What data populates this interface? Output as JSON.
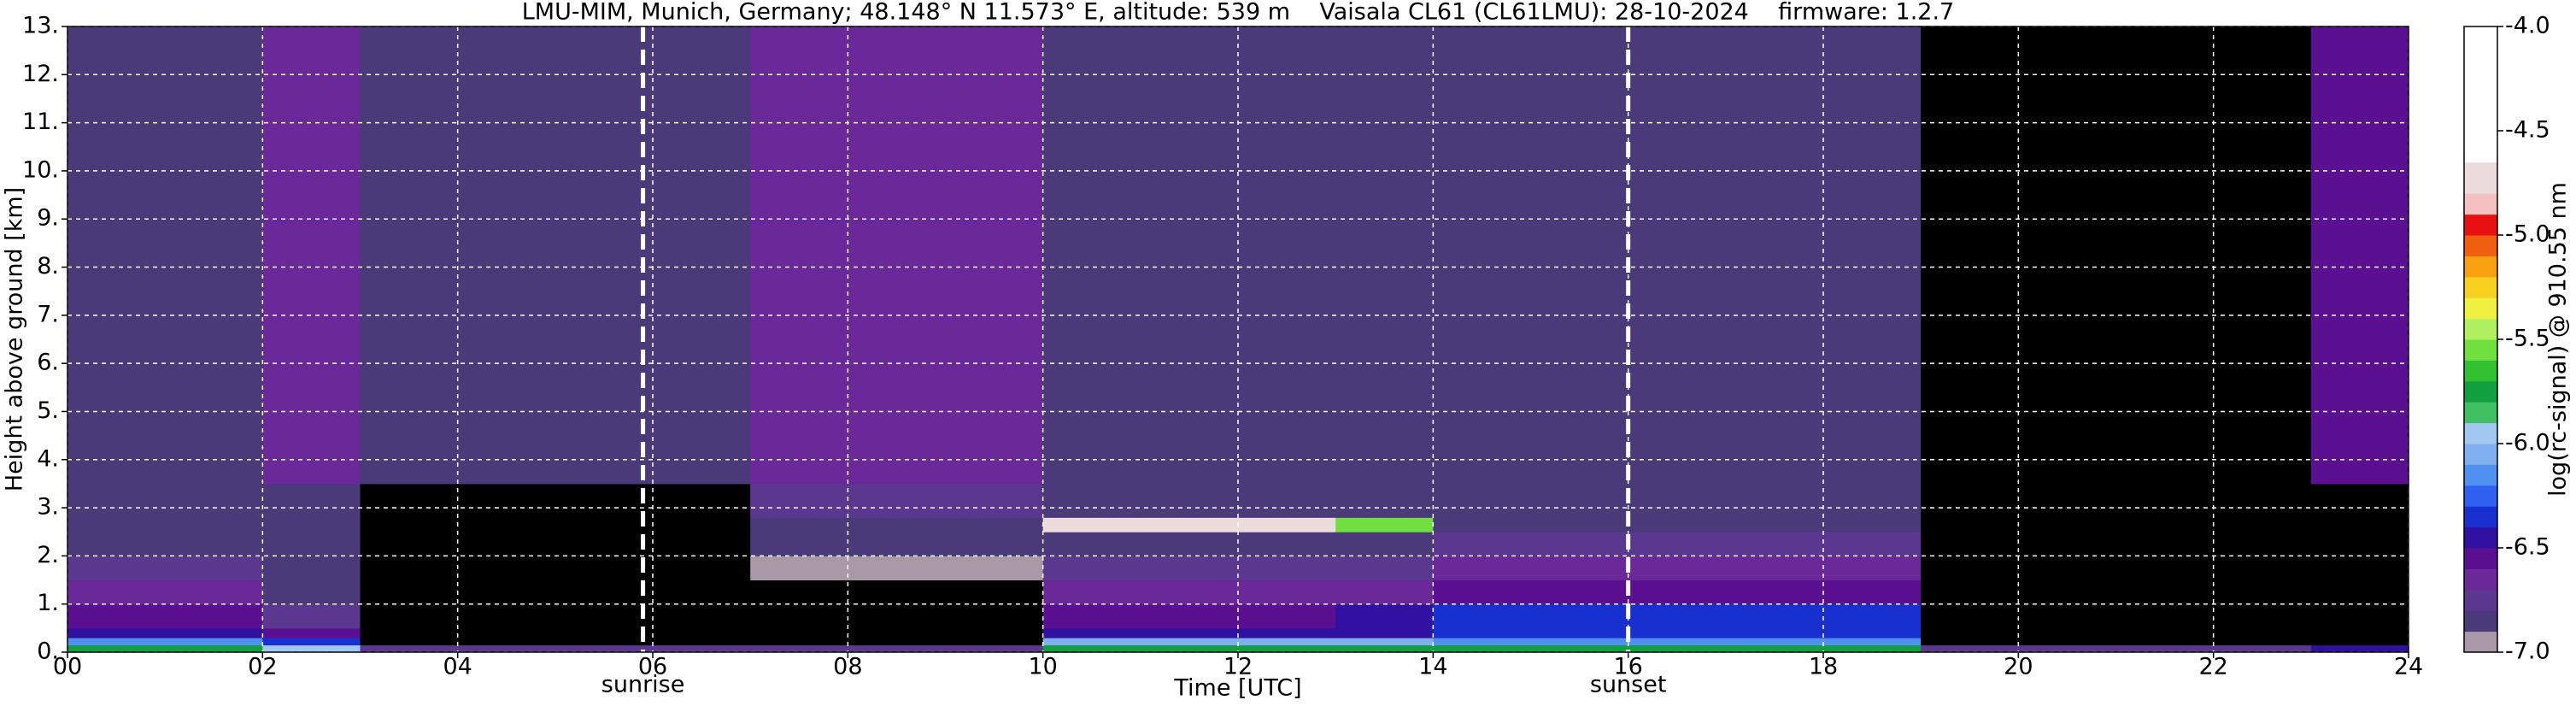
{
  "chart_data": {
    "type": "heatmap",
    "title": "LMU-MIM, Munich, Germany; 48.148° N 11.573° E, altitude: 539 m    Vaisala CL61 (CL61LMU): 28-10-2024    firmware: 1.2.7",
    "x_label": "Time [UTC]",
    "y_label": "Height above ground [km]",
    "x_bins": [
      0,
      1,
      2,
      3,
      4,
      5,
      6,
      7,
      8,
      9,
      10,
      11,
      12,
      13,
      14,
      15,
      16,
      17,
      18,
      19,
      20,
      21,
      22,
      23,
      24
    ],
    "y_bins": [
      0,
      0.15,
      0.3,
      0.5,
      1,
      1.5,
      2,
      2.5,
      2.8,
      3.5,
      13
    ],
    "values": [
      [
        -5.8,
        -5.8,
        -6.0,
        -6.8,
        -6.8,
        -6.8,
        -6.8,
        -6.8,
        -6.8,
        -6.8,
        -5.8,
        -5.8,
        -5.8,
        -5.8,
        -5.8,
        -5.8,
        -5.8,
        -5.8,
        -5.8,
        -6.8,
        -6.8,
        -6.8,
        -6.8,
        -6.5
      ],
      [
        -6.2,
        -6.2,
        -6.4,
        -7.2,
        -7.2,
        -7.2,
        -7.2,
        -7.2,
        -7.2,
        -7.2,
        -6.1,
        -6.1,
        -6.1,
        -6.1,
        -6.2,
        -6.2,
        -6.2,
        -6.2,
        -6.2,
        -7.2,
        -7.2,
        -7.2,
        -7.2,
        -7.1
      ],
      [
        -6.5,
        -6.5,
        -6.6,
        -7.2,
        -7.2,
        -7.2,
        -7.2,
        -7.2,
        -7.2,
        -7.2,
        -6.5,
        -6.5,
        -6.5,
        -6.5,
        -6.4,
        -6.4,
        -6.4,
        -6.4,
        -6.4,
        -7.2,
        -7.2,
        -7.2,
        -7.2,
        -7.1
      ],
      [
        -6.6,
        -6.6,
        -6.8,
        -7.2,
        -7.2,
        -7.2,
        -7.2,
        -7.2,
        -7.2,
        -7.2,
        -6.6,
        -6.6,
        -6.6,
        -6.5,
        -6.35,
        -6.35,
        -6.35,
        -6.35,
        -6.35,
        -7.2,
        -7.2,
        -7.2,
        -7.2,
        -7.1
      ],
      [
        -6.7,
        -6.7,
        -6.85,
        -7.2,
        -7.2,
        -7.2,
        -7.2,
        -7.1,
        -7.1,
        -7.1,
        -6.7,
        -6.7,
        -6.7,
        -6.65,
        -6.6,
        -6.6,
        -6.6,
        -6.6,
        -6.6,
        -7.2,
        -7.2,
        -7.2,
        -7.2,
        -7.1
      ],
      [
        -6.8,
        -6.8,
        -6.85,
        -7.2,
        -7.2,
        -7.2,
        -7.2,
        -7.0,
        -7.0,
        -7.0,
        -6.8,
        -6.8,
        -6.8,
        -6.8,
        -6.7,
        -6.7,
        -6.7,
        -6.7,
        -6.7,
        -7.2,
        -7.2,
        -7.2,
        -7.2,
        -7.1
      ],
      [
        -6.85,
        -6.85,
        -6.85,
        -7.2,
        -7.2,
        -7.2,
        -7.2,
        -6.9,
        -6.9,
        -6.9,
        -6.85,
        -6.85,
        -6.85,
        -6.85,
        -6.8,
        -6.8,
        -6.8,
        -6.8,
        -6.8,
        -7.2,
        -7.2,
        -7.2,
        -7.2,
        -7.1
      ],
      [
        -6.85,
        -6.85,
        -6.85,
        -7.2,
        -7.2,
        -7.2,
        -7.2,
        -6.9,
        -6.9,
        -6.9,
        -4.8,
        -4.8,
        -4.8,
        -5.6,
        -6.85,
        -6.85,
        -6.85,
        -6.85,
        -6.85,
        -7.2,
        -7.2,
        -7.2,
        -7.2,
        -7.1
      ],
      [
        -6.85,
        -6.85,
        -6.85,
        -7.2,
        -7.2,
        -7.2,
        -7.2,
        -6.8,
        -6.8,
        -6.8,
        -6.85,
        -6.85,
        -6.85,
        -6.85,
        -6.85,
        -6.85,
        -6.85,
        -6.85,
        -6.85,
        -7.2,
        -7.2,
        -7.2,
        -7.2,
        -7.1
      ],
      [
        -6.85,
        -6.85,
        -6.7,
        -6.85,
        -6.85,
        -6.85,
        -6.85,
        -6.7,
        -6.7,
        -6.7,
        -6.85,
        -6.85,
        -6.85,
        -6.85,
        -6.85,
        -6.85,
        -6.85,
        -6.85,
        -6.85,
        -7.05,
        -7.05,
        -7.05,
        -7.05,
        -6.6
      ]
    ],
    "xlim": [
      0,
      24
    ],
    "xticks": [
      {
        "value": 0,
        "label": "00"
      },
      {
        "value": 2,
        "label": "02"
      },
      {
        "value": 4,
        "label": "04"
      },
      {
        "value": 6,
        "label": "06"
      },
      {
        "value": 8,
        "label": "08"
      },
      10,
      12,
      14,
      16,
      18,
      20,
      22,
      24
    ],
    "ylim": [
      0,
      13
    ],
    "yticks": [
      {
        "value": 0,
        "label": "0."
      },
      {
        "value": 1,
        "label": "1."
      },
      {
        "value": 2,
        "label": "2."
      },
      {
        "value": 3,
        "label": "3."
      },
      {
        "value": 4,
        "label": "4."
      },
      {
        "value": 5,
        "label": "5."
      },
      {
        "value": 6,
        "label": "6."
      },
      {
        "value": 7,
        "label": "7."
      },
      {
        "value": 8,
        "label": "8."
      },
      {
        "value": 9,
        "label": "9."
      },
      {
        "value": 10,
        "label": "10."
      },
      {
        "value": 11,
        "label": "11."
      },
      {
        "value": 12,
        "label": "12."
      },
      {
        "value": 13,
        "label": "13."
      }
    ],
    "grid": true,
    "annotations": [
      {
        "x": 5.9,
        "label": "sunrise"
      },
      {
        "x": 16.0,
        "label": "sunset"
      }
    ],
    "colorbar": {
      "label": "log(rc-signal) @ 910.55 nm",
      "lim": [
        -7,
        -4
      ],
      "ticks": [
        {
          "value": -7,
          "label": "-7.0"
        },
        {
          "value": -6.5,
          "label": "-6.5"
        },
        {
          "value": -6,
          "label": "-6.0"
        },
        {
          "value": -5.5,
          "label": "-5.5"
        },
        {
          "value": -5,
          "label": "-5.0"
        },
        {
          "value": -4.5,
          "label": "-4.5"
        },
        {
          "value": -4,
          "label": "-4.0"
        }
      ],
      "levels": [
        -7.0,
        -6.9,
        -6.8,
        -6.7,
        -6.6,
        -6.5,
        -6.4,
        -6.3,
        -6.2,
        -6.1,
        -6.0,
        -5.9,
        -5.8,
        -5.7,
        -5.6,
        -5.5,
        -5.4,
        -5.3,
        -5.2,
        -5.1,
        -5.0,
        -4.9,
        -4.8,
        -4.65,
        -4.0
      ],
      "colors": [
        "#a898a8",
        "#4a3a7a",
        "#5a3890",
        "#6a2898",
        "#5a1090",
        "#3010a0",
        "#1830d0",
        "#3060f0",
        "#5090f0",
        "#80b0f0",
        "#a0c8f0",
        "#40c060",
        "#10a040",
        "#30c030",
        "#70e040",
        "#b0f060",
        "#f0f040",
        "#f8d020",
        "#f8a010",
        "#f06010",
        "#e81010",
        "#f4c0c0",
        "#ecdcdc",
        "#ffffff"
      ],
      "under_color": "#000000"
    }
  }
}
